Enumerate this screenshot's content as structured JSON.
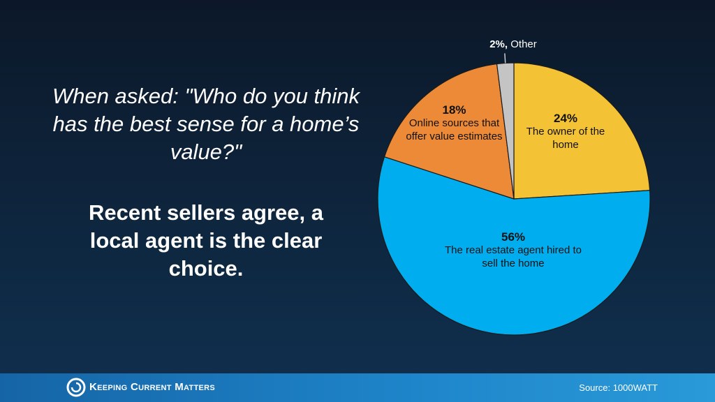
{
  "slide": {
    "question": "When asked: \"Who do you think has the best sense for a home’s value?\"",
    "statement": "Recent sellers agree, a local agent is the clear choice.",
    "brand": "Keeping Current Matters",
    "source": "Source: 1000WATT"
  },
  "chart_data": {
    "type": "pie",
    "categories": [
      "The owner of the home",
      "The real estate agent hired to sell the home",
      "Online sources that offer value estimates",
      "Other"
    ],
    "values": [
      24,
      56,
      18,
      2
    ],
    "value_labels": [
      "24%",
      "56%",
      "18%",
      "2%,"
    ],
    "colors": [
      "#f4c235",
      "#00aeef",
      "#ec8a38",
      "#c4c4c4"
    ]
  }
}
